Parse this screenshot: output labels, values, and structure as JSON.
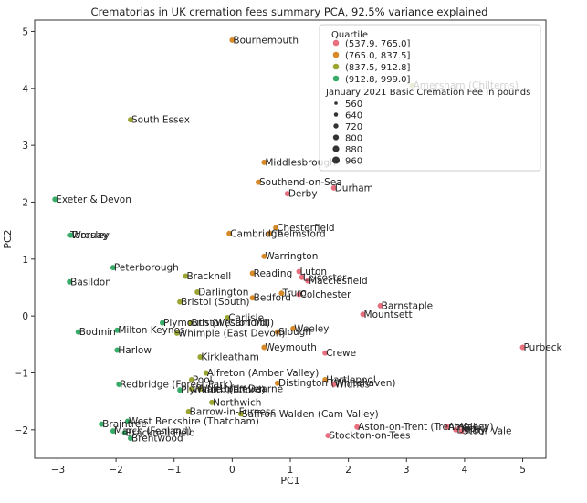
{
  "chart_data": {
    "type": "scatter",
    "title": "Crematorias in UK cremation fees summary PCA, 92.5% variance explained",
    "xlabel": "PC1",
    "ylabel": "PC2",
    "xlim": [
      -3.4,
      5.4
    ],
    "ylim": [
      -2.5,
      5.2
    ],
    "xticks": [
      "−3",
      "−2",
      "−1",
      "0",
      "1",
      "2",
      "3",
      "4",
      "5"
    ],
    "yticks": [
      "−2",
      "−1",
      "0",
      "1",
      "2",
      "3",
      "4",
      "5"
    ],
    "xtick_values": [
      -3,
      -2,
      -1,
      0,
      1,
      2,
      3,
      4,
      5
    ],
    "ytick_values": [
      -2,
      -1,
      0,
      1,
      2,
      3,
      4,
      5
    ],
    "legend": {
      "position": "top-right",
      "hue_title": "Quartile",
      "hue_entries": [
        {
          "label": "(537.9, 765.0]",
          "color": "#e8707e"
        },
        {
          "label": "(765.0, 837.5]",
          "color": "#d68a2a"
        },
        {
          "label": "(837.5, 912.8]",
          "color": "#9aa532"
        },
        {
          "label": "(912.8, 999.0]",
          "color": "#3aac6a"
        }
      ],
      "size_title": "January 2021 Basic Cremation Fee in pounds",
      "size_entries": [
        "560",
        "640",
        "720",
        "800",
        "880",
        "960"
      ]
    },
    "points": [
      {
        "label": "Bournemouth",
        "x": 0.0,
        "y": 4.85,
        "q": 1
      },
      {
        "label": "Amersham (Chilterns)",
        "x": 3.1,
        "y": 4.05,
        "q": 2
      },
      {
        "label": "South Essex",
        "x": -1.75,
        "y": 3.45,
        "q": 2
      },
      {
        "label": "Middlesbrough",
        "x": 0.55,
        "y": 2.7,
        "q": 1
      },
      {
        "label": "Southend-on-Sea",
        "x": 0.45,
        "y": 2.35,
        "q": 1
      },
      {
        "label": "Durham",
        "x": 1.75,
        "y": 2.25,
        "q": 0
      },
      {
        "label": "Derby",
        "x": 0.95,
        "y": 2.15,
        "q": 0
      },
      {
        "label": "Exeter & Devon",
        "x": -3.05,
        "y": 2.05,
        "q": 3
      },
      {
        "label": "Cambridge",
        "x": -0.05,
        "y": 1.45,
        "q": 1
      },
      {
        "label": "Chesterfield",
        "x": 0.75,
        "y": 1.55,
        "q": 1
      },
      {
        "label": "Chelmsford",
        "x": 0.65,
        "y": 1.45,
        "q": 1
      },
      {
        "label": "Torquay",
        "x": -2.8,
        "y": 1.42,
        "q": 3
      },
      {
        "label": "Worsley",
        "x": -2.78,
        "y": 1.42,
        "q": 3
      },
      {
        "label": "Warrington",
        "x": 0.55,
        "y": 1.05,
        "q": 1
      },
      {
        "label": "Peterborough",
        "x": -2.05,
        "y": 0.85,
        "q": 3
      },
      {
        "label": "Reading",
        "x": 0.35,
        "y": 0.75,
        "q": 1
      },
      {
        "label": "Luton",
        "x": 1.15,
        "y": 0.78,
        "q": 0
      },
      {
        "label": "Leicester",
        "x": 1.2,
        "y": 0.68,
        "q": 0
      },
      {
        "label": "Macclesfield",
        "x": 1.3,
        "y": 0.62,
        "q": 0
      },
      {
        "label": "Bracknell",
        "x": -0.8,
        "y": 0.7,
        "q": 2
      },
      {
        "label": "Basildon",
        "x": -2.8,
        "y": 0.6,
        "q": 3
      },
      {
        "label": "Darlington",
        "x": -0.6,
        "y": 0.42,
        "q": 2
      },
      {
        "label": "Truro",
        "x": 0.85,
        "y": 0.4,
        "q": 1
      },
      {
        "label": "Colchester",
        "x": 1.15,
        "y": 0.38,
        "q": 0
      },
      {
        "label": "Bedford",
        "x": 0.35,
        "y": 0.32,
        "q": 1
      },
      {
        "label": "Bristol (South)",
        "x": -0.9,
        "y": 0.25,
        "q": 2
      },
      {
        "label": "Barnstaple",
        "x": 2.55,
        "y": 0.18,
        "q": 0
      },
      {
        "label": "Mountsett",
        "x": 2.25,
        "y": 0.03,
        "q": 0
      },
      {
        "label": "Carlisle",
        "x": -0.08,
        "y": -0.03,
        "q": 2
      },
      {
        "label": "Plymouth (Weston Mill)",
        "x": -1.2,
        "y": -0.12,
        "q": 3
      },
      {
        "label": "Bristol (Canford)",
        "x": -0.72,
        "y": -0.12,
        "q": 2
      },
      {
        "label": "Bodmin",
        "x": -2.65,
        "y": -0.28,
        "q": 3
      },
      {
        "label": "Milton Keynes",
        "x": -1.98,
        "y": -0.25,
        "q": 3
      },
      {
        "label": "Whimple (East Devon)",
        "x": -0.95,
        "y": -0.3,
        "q": 2
      },
      {
        "label": "Slough",
        "x": 0.78,
        "y": -0.28,
        "q": 1
      },
      {
        "label": "Weeley",
        "x": 1.05,
        "y": -0.22,
        "q": 1
      },
      {
        "label": "Purbeck",
        "x": 5.0,
        "y": -0.55,
        "q": 0
      },
      {
        "label": "Harlow",
        "x": -1.98,
        "y": -0.6,
        "q": 3
      },
      {
        "label": "Weymouth",
        "x": 0.55,
        "y": -0.55,
        "q": 1
      },
      {
        "label": "Crewe",
        "x": 1.6,
        "y": -0.65,
        "q": 0
      },
      {
        "label": "Kirkleatham",
        "x": -0.55,
        "y": -0.72,
        "q": 2
      },
      {
        "label": "Alfreton (Amber Valley)",
        "x": -0.45,
        "y": -1.0,
        "q": 2
      },
      {
        "label": "Pool",
        "x": -0.7,
        "y": -1.12,
        "q": 2
      },
      {
        "label": "Redbridge (Forest Park)",
        "x": -1.95,
        "y": -1.2,
        "q": 3
      },
      {
        "label": "Distington (Whitehaven)",
        "x": 0.78,
        "y": -1.18,
        "q": 1
      },
      {
        "label": "Hartlepool",
        "x": 1.6,
        "y": -1.12,
        "q": 1
      },
      {
        "label": "Widnes",
        "x": 1.75,
        "y": -1.2,
        "q": 0
      },
      {
        "label": "Plymouth (Efford)",
        "x": -0.9,
        "y": -1.3,
        "q": 3
      },
      {
        "label": "Wath Upon Dearne",
        "x": -0.7,
        "y": -1.28,
        "q": 2
      },
      {
        "label": "Vale of Leven",
        "x": -0.55,
        "y": -1.28,
        "q": 2
      },
      {
        "label": "Northwich",
        "x": -0.35,
        "y": -1.52,
        "q": 2
      },
      {
        "label": "Barrow-in-Furness",
        "x": -0.75,
        "y": -1.68,
        "q": 2
      },
      {
        "label": "Saffron Walden (Cam Valley)",
        "x": 0.15,
        "y": -1.72,
        "q": 2
      },
      {
        "label": "West Berkshire (Thatcham)",
        "x": -1.8,
        "y": -1.85,
        "q": 3
      },
      {
        "label": "Braintree",
        "x": -2.25,
        "y": -1.9,
        "q": 3
      },
      {
        "label": "Aston-on-Trent (Trent Valley)",
        "x": 2.15,
        "y": -1.95,
        "q": 0
      },
      {
        "label": "Amble",
        "x": 3.7,
        "y": -1.95,
        "q": 0
      },
      {
        "label": "Yeovil",
        "x": 3.9,
        "y": -1.98,
        "q": 0
      },
      {
        "label": "Derby",
        "x": 3.85,
        "y": -2.0,
        "q": 0
      },
      {
        "label": "Stour Vale",
        "x": 3.95,
        "y": -2.02,
        "q": 0
      },
      {
        "label": "March (Fenland)",
        "x": -2.05,
        "y": -2.02,
        "q": 3
      },
      {
        "label": "Bracknell Field",
        "x": -1.85,
        "y": -2.05,
        "q": 3
      },
      {
        "label": "Stockton-on-Tees",
        "x": 1.65,
        "y": -2.1,
        "q": 0
      },
      {
        "label": "Brentwood",
        "x": -1.75,
        "y": -2.15,
        "q": 3
      }
    ]
  }
}
